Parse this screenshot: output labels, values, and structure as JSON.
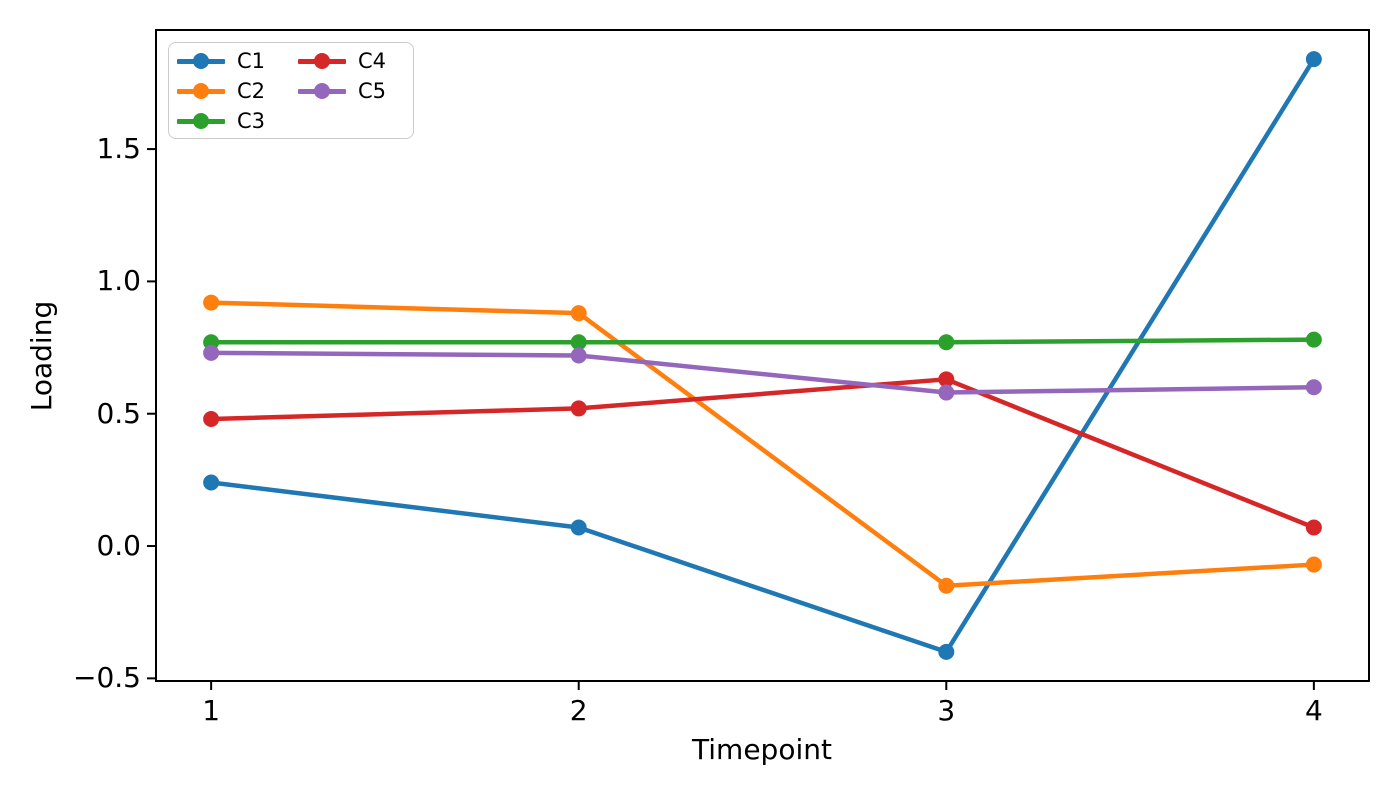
{
  "figure": {
    "background": "#ffffff",
    "text_color": "#000000",
    "spine_color": "#000000"
  },
  "chart_data": {
    "type": "line",
    "title": "",
    "xlabel": "Timepoint",
    "ylabel": "Loading",
    "x": [
      1,
      2,
      3,
      4
    ],
    "xtick_labels": [
      "1",
      "2",
      "3",
      "4"
    ],
    "ytick_values": [
      1.5,
      1.0,
      0.5,
      0.0,
      -0.5
    ],
    "ytick_labels": [
      "1.5",
      "1.0",
      "0.5",
      "0.0",
      "−0.5"
    ],
    "xlim": [
      0.85,
      4.15
    ],
    "ylim": [
      -0.51,
      1.95
    ],
    "grid": false,
    "marker": "circle",
    "legend_position": "upper left",
    "legend_columns": 2,
    "series": [
      {
        "name": "C1",
        "color": "#1f77b4",
        "values": [
          0.24,
          0.07,
          -0.4,
          1.84
        ]
      },
      {
        "name": "C2",
        "color": "#ff7f0e",
        "values": [
          0.92,
          0.88,
          -0.15,
          -0.07
        ]
      },
      {
        "name": "C3",
        "color": "#2ca02c",
        "values": [
          0.77,
          0.77,
          0.77,
          0.78
        ]
      },
      {
        "name": "C4",
        "color": "#d62728",
        "values": [
          0.48,
          0.52,
          0.63,
          0.07
        ]
      },
      {
        "name": "C5",
        "color": "#9467bd",
        "values": [
          0.73,
          0.72,
          0.58,
          0.6
        ]
      }
    ]
  }
}
